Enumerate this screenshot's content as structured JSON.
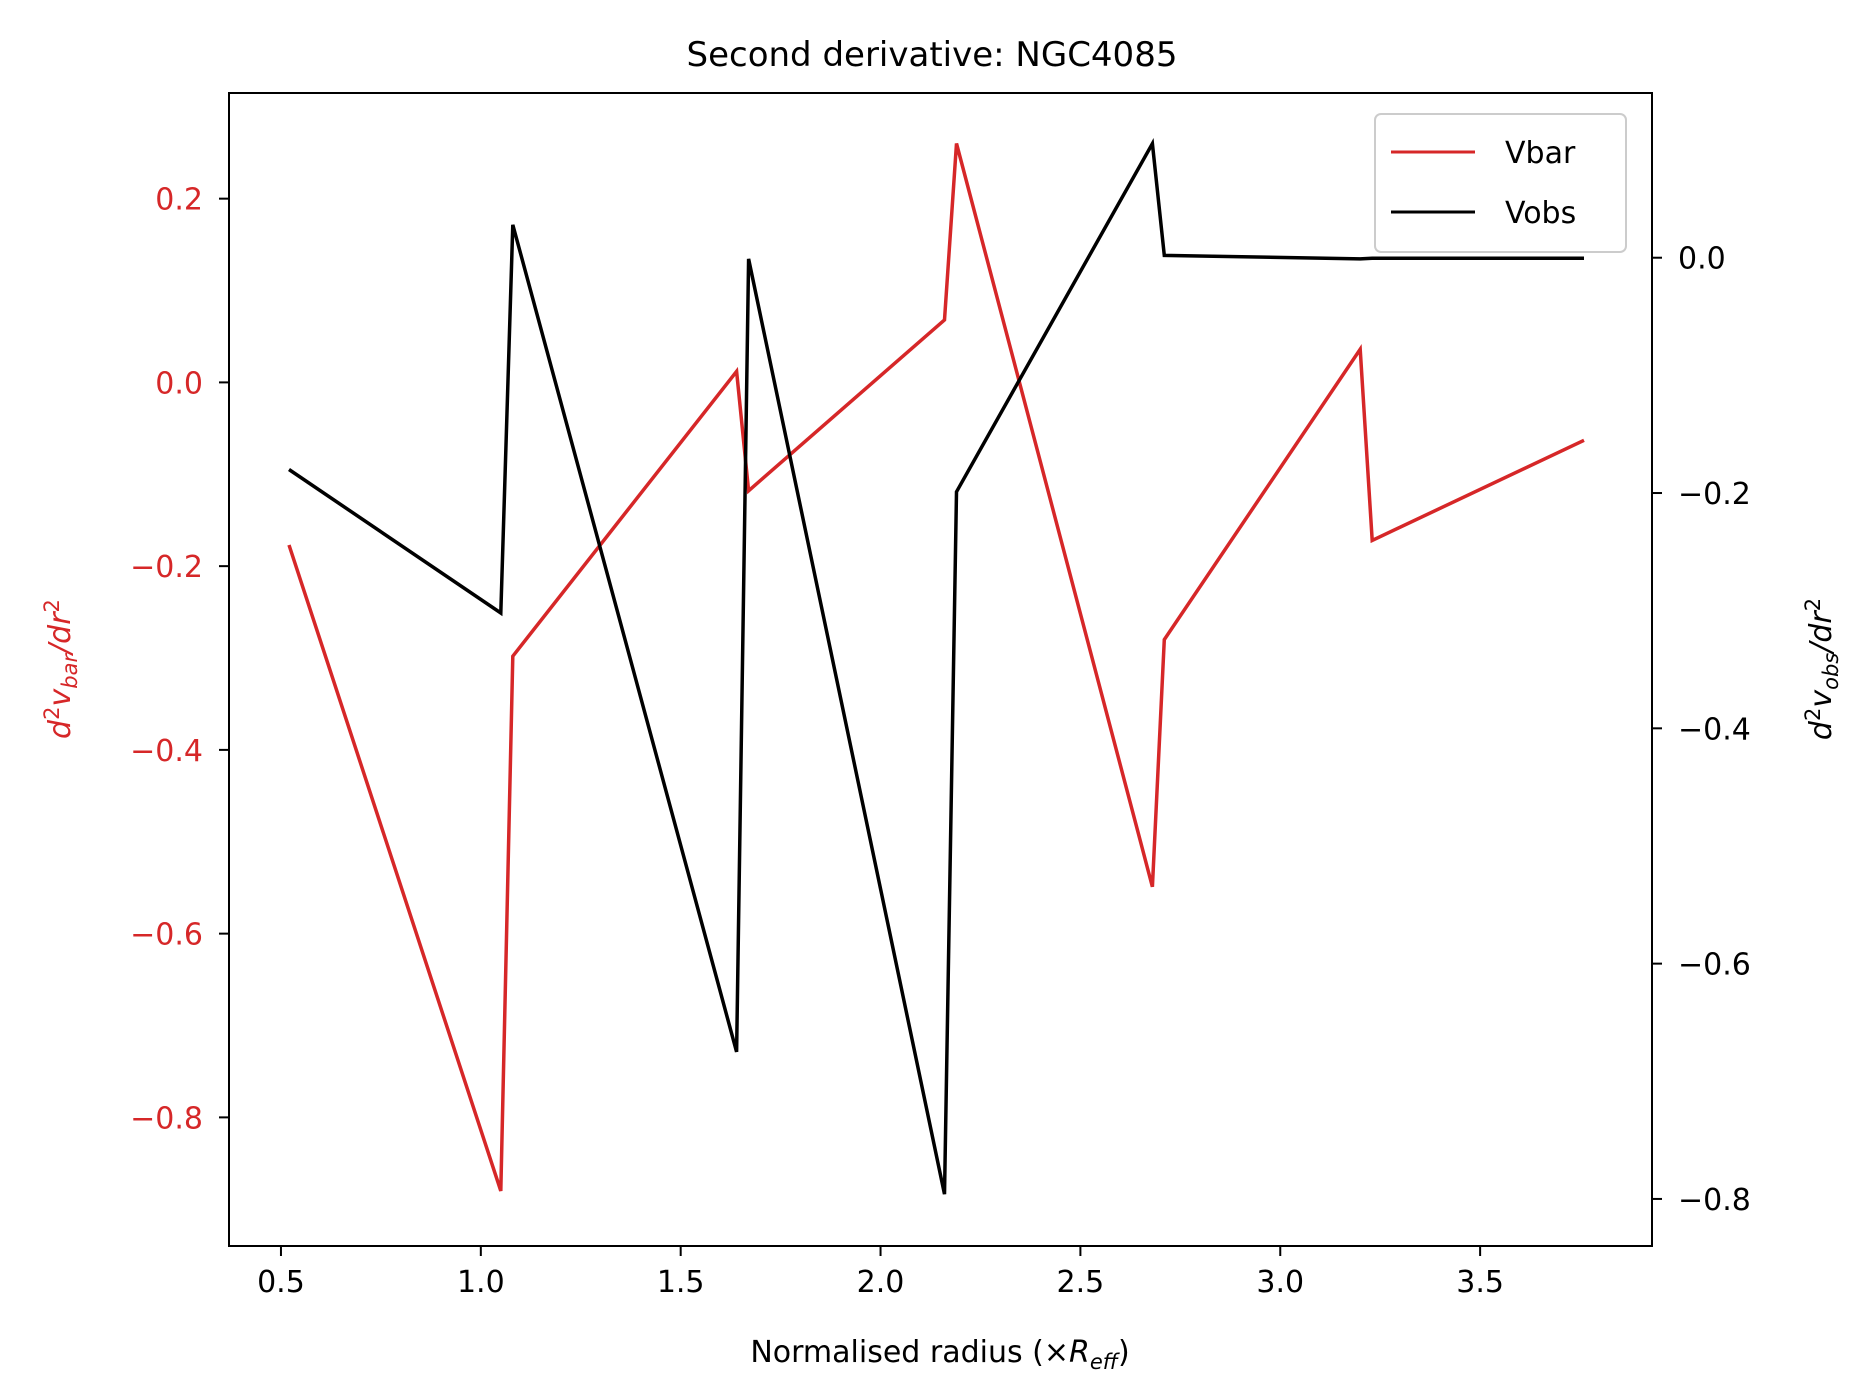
{
  "chart_data": {
    "type": "line",
    "title": "Second derivative: NGC4085",
    "xlabel": "Normalised radius (×R_eff)",
    "xlim": [
      0.37,
      3.93
    ],
    "x_ticks": [
      0.5,
      1.0,
      1.5,
      2.0,
      2.5,
      3.0,
      3.5
    ],
    "y_left": {
      "label": "d²v_bar/dr²",
      "lim": [
        -0.94,
        0.315
      ],
      "ticks": [
        0.2,
        0.0,
        -0.2,
        -0.4,
        -0.6,
        -0.8
      ],
      "color": "#d62728"
    },
    "y_right": {
      "label": "d²v_obs/dr²",
      "lim": [
        -0.84,
        0.14
      ],
      "ticks": [
        0.0,
        -0.2,
        -0.4,
        -0.6,
        -0.8
      ],
      "color": "#000000"
    },
    "legend_position": "top-right",
    "series": [
      {
        "name": "Vbar",
        "axis": "left",
        "color": "#d62728",
        "x": [
          0.52,
          1.05,
          1.08,
          1.64,
          1.67,
          2.16,
          2.19,
          2.68,
          2.71,
          3.2,
          3.23,
          3.76
        ],
        "y": [
          -0.177,
          -0.88,
          -0.298,
          0.012,
          -0.118,
          0.068,
          0.26,
          -0.549,
          -0.28,
          0.036,
          -0.172,
          -0.063
        ]
      },
      {
        "name": "Vobs",
        "axis": "right",
        "color": "#000000",
        "x": [
          0.52,
          1.05,
          1.08,
          1.64,
          1.67,
          2.16,
          2.19,
          2.68,
          2.71,
          3.2,
          3.23,
          3.76
        ],
        "y": [
          -0.18,
          -0.302,
          0.028,
          -0.675,
          -0.001,
          -0.796,
          -0.199,
          0.097,
          0.002,
          -0.001,
          -0.0005,
          -0.0005
        ]
      }
    ]
  }
}
